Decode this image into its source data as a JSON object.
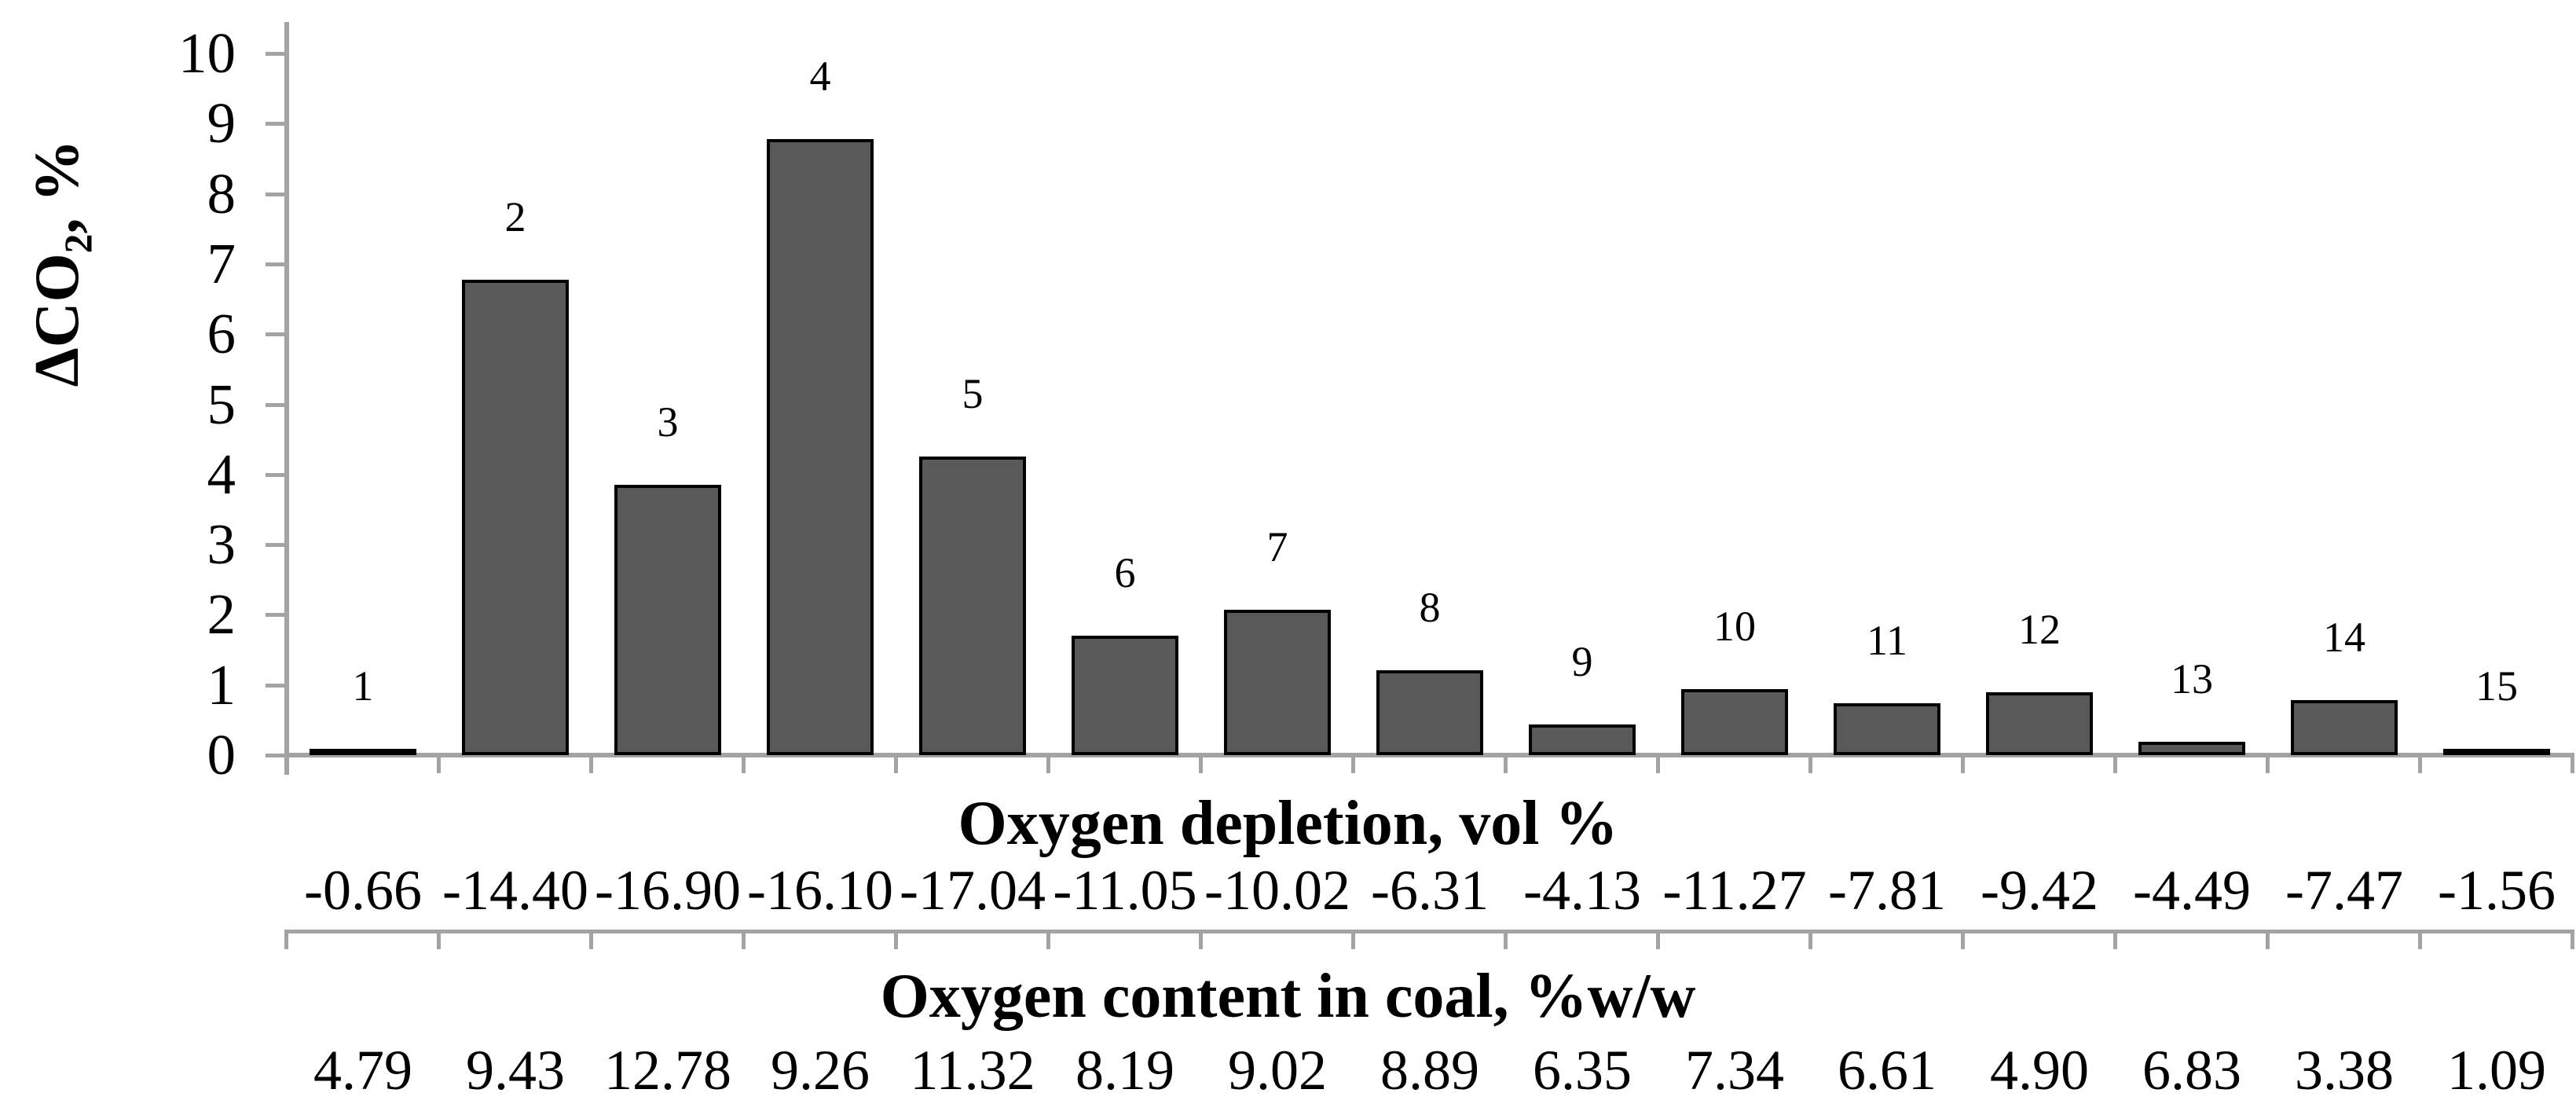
{
  "figure": {
    "y_axis": {
      "title_prefix": "ΔCO",
      "title_sub": "2",
      "title_suffix": ", %",
      "tick_labels": [
        "10",
        "9",
        "8",
        "7",
        "6",
        "5",
        "4",
        "3",
        "2",
        "1",
        "0"
      ]
    },
    "bar_labels": [
      "1",
      "2",
      "3",
      "4",
      "5",
      "6",
      "7",
      "8",
      "9",
      "10",
      "11",
      "12",
      "13",
      "14",
      "15"
    ],
    "x_axis_level1": {
      "title": "Oxygen depletion, vol %",
      "values": [
        "-0.66",
        "-14.40",
        "-16.90",
        "-16.10",
        "-17.04",
        "-11.05",
        "-10.02",
        "-6.31",
        "-4.13",
        "-11.27",
        "-7.81",
        "-9.42",
        "-4.49",
        "-7.47",
        "-1.56"
      ]
    },
    "x_axis_level2": {
      "title": "Oxygen content in coal, %w/w",
      "values": [
        "4.79",
        "9.43",
        "12.78",
        "9.26",
        "11.32",
        "8.19",
        "9.02",
        "8.89",
        "6.35",
        "7.34",
        "6.61",
        "4.90",
        "6.83",
        "3.38",
        "1.09"
      ]
    },
    "colors": {
      "bar_fill": "#595959",
      "bar_border": "#000000",
      "axis_gray": "#a3a3a3",
      "text": "#000000"
    }
  },
  "chart_data": {
    "type": "bar",
    "title": "",
    "ylabel": "ΔCO2, %",
    "ylim": [
      0,
      10
    ],
    "y_ticks": [
      0,
      1,
      2,
      3,
      4,
      5,
      6,
      7,
      8,
      9,
      10
    ],
    "grid": false,
    "legend": false,
    "categories": [
      "1",
      "2",
      "3",
      "4",
      "5",
      "6",
      "7",
      "8",
      "9",
      "10",
      "11",
      "12",
      "13",
      "14",
      "15"
    ],
    "values": [
      0.05,
      6.78,
      3.85,
      8.78,
      4.25,
      1.7,
      2.07,
      1.21,
      0.44,
      0.94,
      0.74,
      0.9,
      0.19,
      0.78,
      0.07
    ],
    "x_level1_label": "Oxygen depletion, vol %",
    "x_level1_values": [
      -0.66,
      -14.4,
      -16.9,
      -16.1,
      -17.04,
      -11.05,
      -10.02,
      -6.31,
      -4.13,
      -11.27,
      -7.81,
      -9.42,
      -4.49,
      -7.47,
      -1.56
    ],
    "x_level2_label": "Oxygen content in coal, %w/w",
    "x_level2_values": [
      4.79,
      9.43,
      12.78,
      9.26,
      11.32,
      8.19,
      9.02,
      8.89,
      6.35,
      7.34,
      6.61,
      4.9,
      6.83,
      3.38,
      1.09
    ]
  }
}
